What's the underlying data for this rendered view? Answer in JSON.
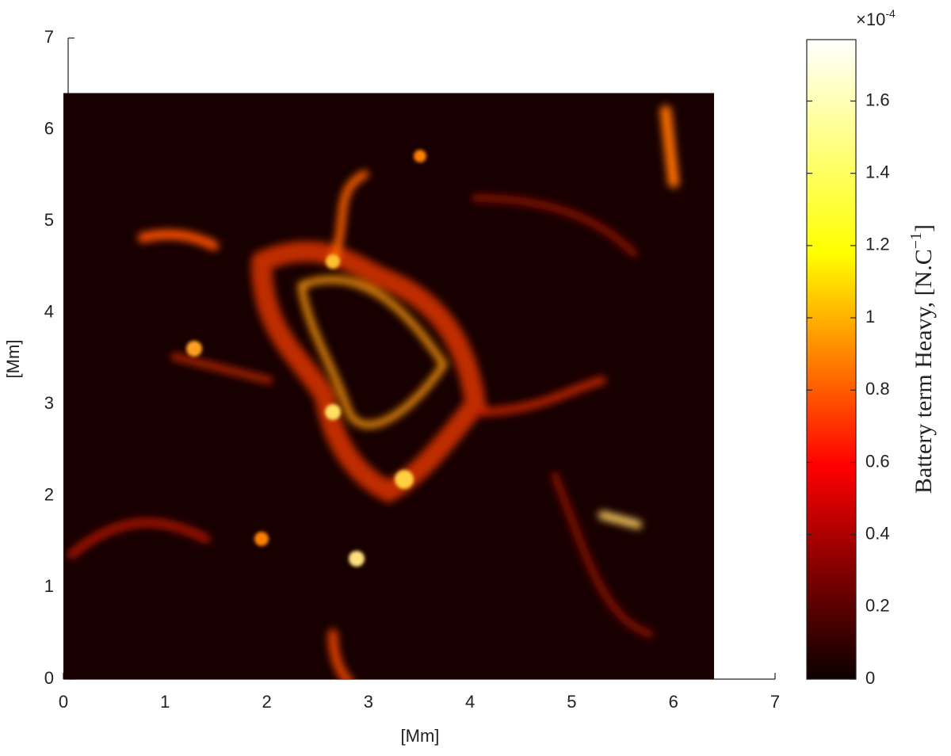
{
  "chart_data": {
    "type": "heatmap",
    "xlabel": "[Mm]",
    "ylabel": "[Mm]",
    "xlim": [
      0,
      7
    ],
    "ylim": [
      0,
      7
    ],
    "xticks": [
      0,
      1,
      2,
      3,
      4,
      5,
      6,
      7
    ],
    "yticks": [
      0,
      1,
      2,
      3,
      4,
      5,
      6,
      7
    ],
    "extent": [
      0,
      6.4,
      0,
      6.4
    ],
    "colormap": "hot",
    "clim": [
      0,
      1.77
    ],
    "cticks": [
      0,
      0.2,
      0.4,
      0.6,
      0.8,
      1,
      1.2,
      1.4,
      1.6
    ],
    "colorbar_multiplier": {
      "base": "×10",
      "exponent": "-4"
    },
    "colorbar_label": {
      "text": "Battery term Heavy, [N.C",
      "exponent": "−1",
      "close": "]"
    }
  }
}
